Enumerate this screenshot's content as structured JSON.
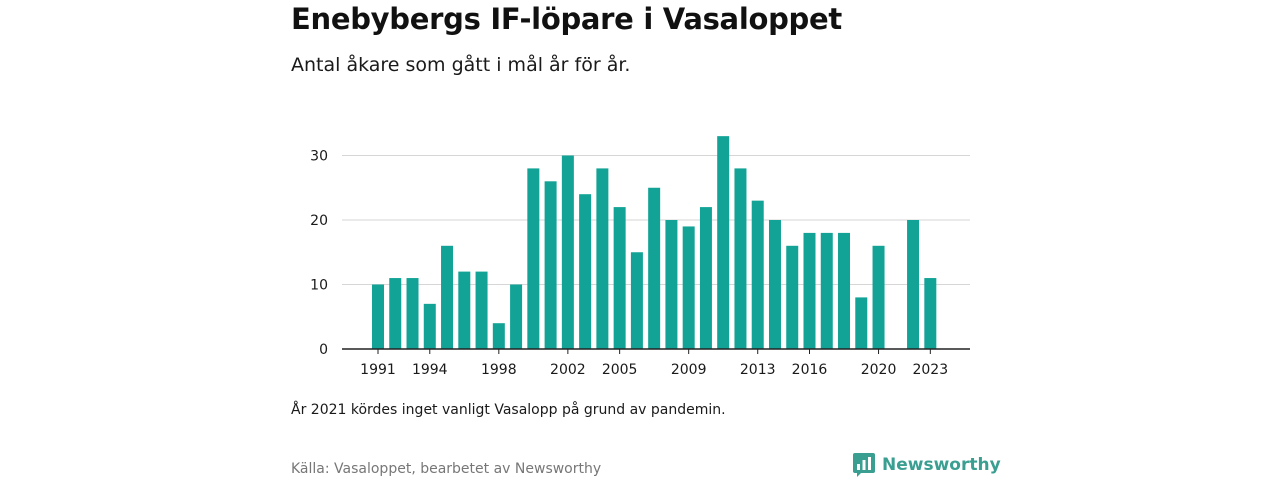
{
  "title": "Enebybergs IF-löpare i Vasaloppet",
  "subtitle": "Antal åkare som gått i mål år för år.",
  "note": "År 2021 kördes inget vanligt Vasalopp på grund av pandemin.",
  "source": "Källa: Vasaloppet, bearbetet av Newsworthy",
  "brand": {
    "name": "Newsworthy",
    "color": "#3a9e91",
    "icon": "chart-logo-icon"
  },
  "colors": {
    "bar": "#12a396",
    "grid": "#d6d6d6",
    "axis": "#222222"
  },
  "chart_data": {
    "type": "bar",
    "title": "Enebybergs IF-löpare i Vasaloppet",
    "subtitle": "Antal åkare som gått i mål år för år.",
    "xlabel": "",
    "ylabel": "",
    "ylim": [
      0,
      33
    ],
    "grid": true,
    "yticks": [
      0,
      10,
      20,
      30
    ],
    "xtick_labels": [
      "1991",
      "1994",
      "1998",
      "2002",
      "2005",
      "2009",
      "2013",
      "2016",
      "2020",
      "2023"
    ],
    "categories": [
      1991,
      1992,
      1993,
      1994,
      1995,
      1996,
      1997,
      1998,
      1999,
      2000,
      2001,
      2002,
      2003,
      2004,
      2005,
      2006,
      2007,
      2008,
      2009,
      2010,
      2011,
      2012,
      2013,
      2014,
      2015,
      2016,
      2017,
      2018,
      2019,
      2020,
      2021,
      2022,
      2023
    ],
    "values": [
      10,
      11,
      11,
      7,
      16,
      12,
      12,
      4,
      10,
      28,
      26,
      30,
      24,
      28,
      22,
      15,
      25,
      20,
      19,
      22,
      33,
      28,
      23,
      20,
      16,
      18,
      18,
      18,
      8,
      16,
      null,
      20,
      11
    ]
  }
}
